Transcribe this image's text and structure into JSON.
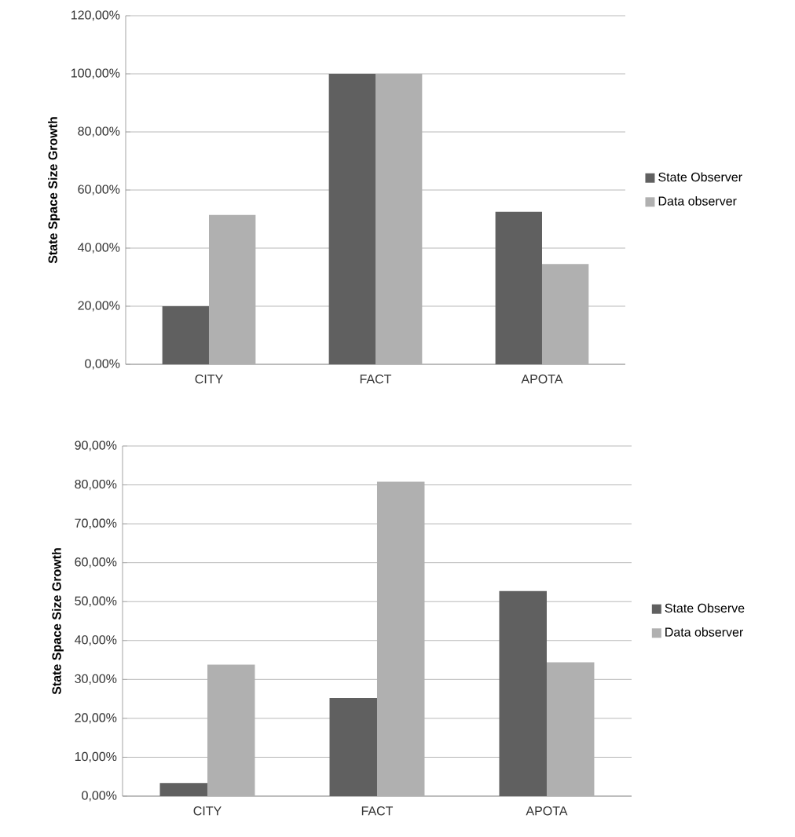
{
  "chart_data": [
    {
      "type": "bar",
      "ylabel": "State Space Size Growth",
      "categories": [
        "CITY",
        "FACT",
        "APOTA"
      ],
      "series": [
        {
          "name": "State Observer",
          "color": "#606060",
          "values": [
            20,
            100,
            52.5
          ]
        },
        {
          "name": "Data observer",
          "color": "#b0b0b0",
          "values": [
            51.4,
            100,
            34.5
          ]
        }
      ],
      "ylim": [
        0,
        120
      ],
      "yticks": [
        {
          "value": 0,
          "label": "0,00%"
        },
        {
          "value": 20,
          "label": "20,00%"
        },
        {
          "value": 40,
          "label": "40,00%"
        },
        {
          "value": 60,
          "label": "60,00%"
        },
        {
          "value": 80,
          "label": "80,00%"
        },
        {
          "value": 100,
          "label": "100,00%"
        },
        {
          "value": 120,
          "label": "120,00%"
        }
      ],
      "grid": "y",
      "legend": "right"
    },
    {
      "type": "bar",
      "ylabel": "State Space Size Growth",
      "categories": [
        "CITY",
        "FACT",
        "APOTA"
      ],
      "series": [
        {
          "name": "State Observe",
          "color": "#606060",
          "values": [
            3.4,
            25.2,
            52.7
          ]
        },
        {
          "name": "Data observer",
          "color": "#b0b0b0",
          "values": [
            33.8,
            80.8,
            34.4
          ]
        }
      ],
      "ylim": [
        0,
        90
      ],
      "yticks": [
        {
          "value": 0,
          "label": "0,00%"
        },
        {
          "value": 10,
          "label": "10,00%"
        },
        {
          "value": 20,
          "label": "20,00%"
        },
        {
          "value": 30,
          "label": "30,00%"
        },
        {
          "value": 40,
          "label": "40,00%"
        },
        {
          "value": 50,
          "label": "50,00%"
        },
        {
          "value": 60,
          "label": "60,00%"
        },
        {
          "value": 70,
          "label": "70,00%"
        },
        {
          "value": 80,
          "label": "80,00%"
        },
        {
          "value": 90,
          "label": "90,00%"
        }
      ],
      "grid": "y",
      "legend": "right"
    }
  ]
}
